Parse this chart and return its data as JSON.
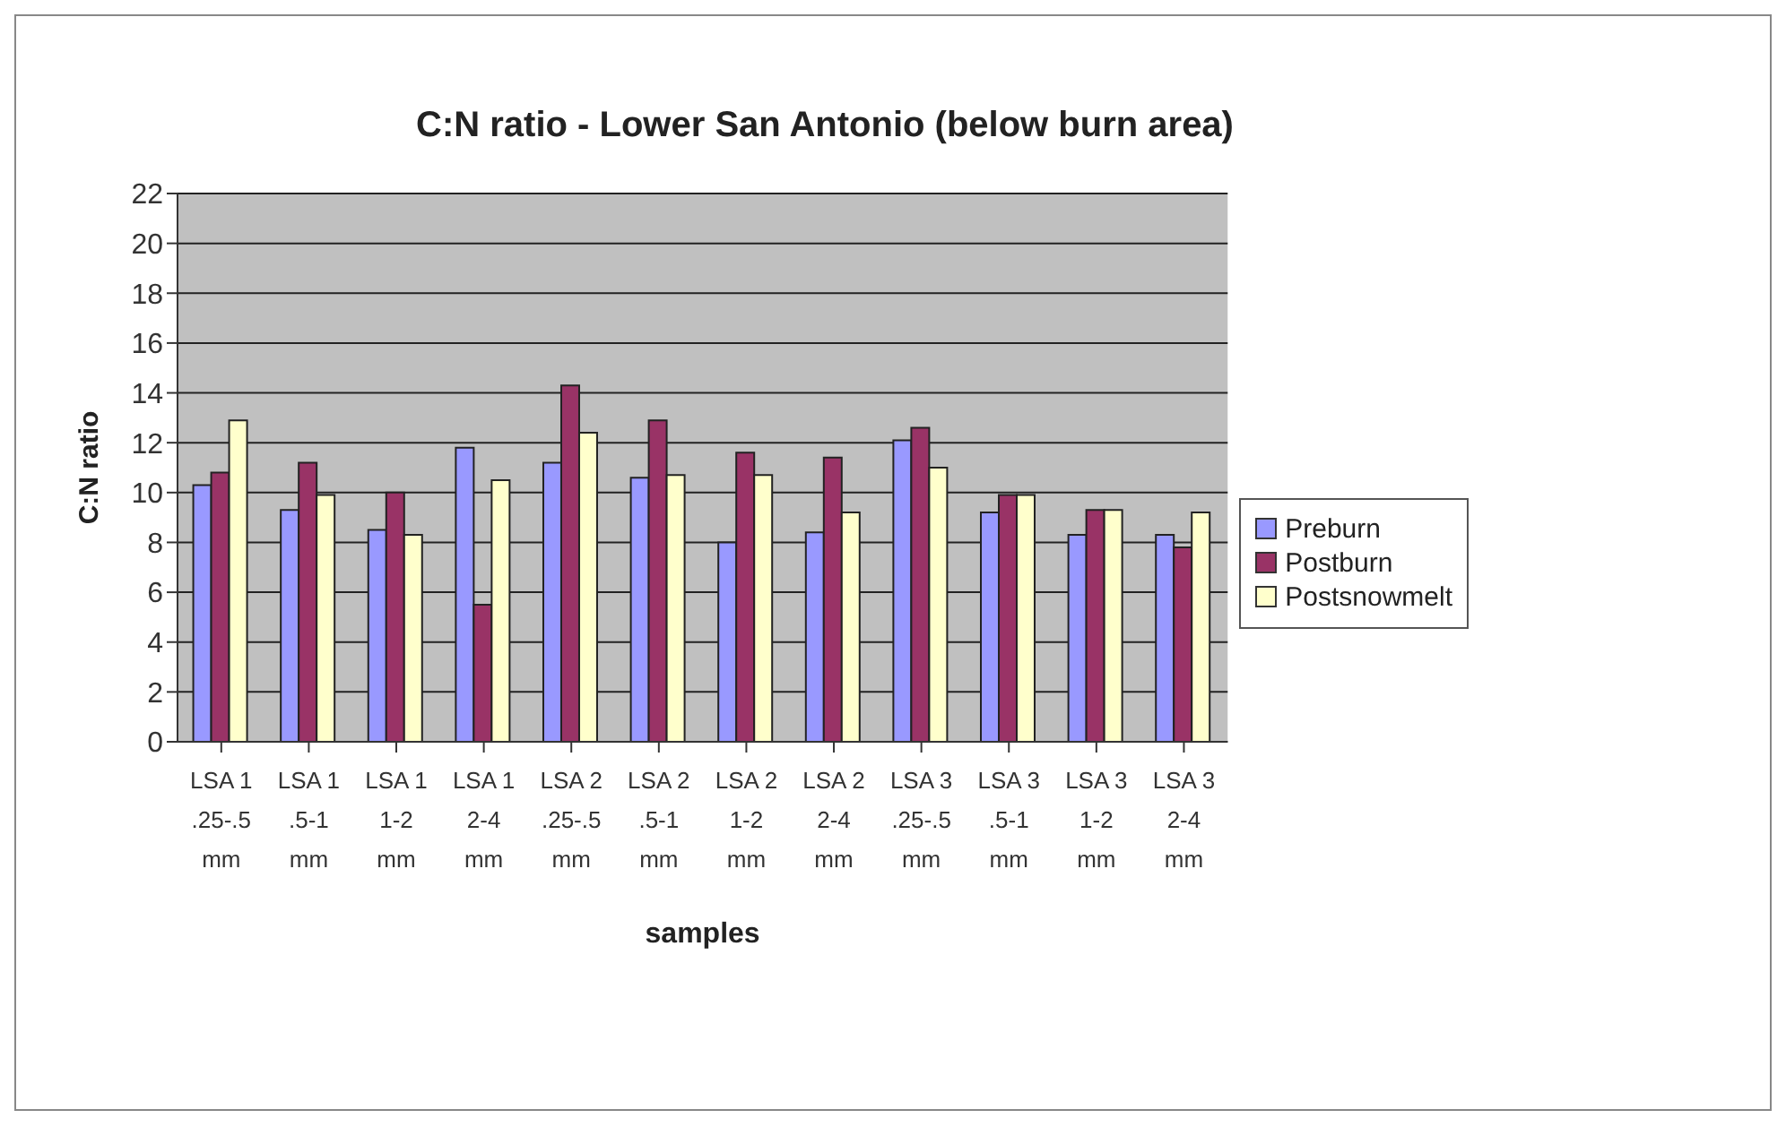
{
  "chart_data": {
    "type": "bar",
    "title": "C:N ratio - Lower San Antonio (below burn area)",
    "xlabel": "samples",
    "ylabel": "C:N ratio",
    "categories": [
      "LSA 1\n.25-.5\nmm",
      "LSA 1\n.5-1\nmm",
      "LSA 1\n1-2\nmm",
      "LSA 1\n2-4\nmm",
      "LSA 2\n.25-.5\nmm",
      "LSA 2\n.5-1\nmm",
      "LSA 2\n1-2\nmm",
      "LSA 2\n2-4\nmm",
      "LSA 3\n.25-.5\nmm",
      "LSA 3\n.5-1\nmm",
      "LSA 3\n1-2\nmm",
      "LSA 3\n2-4\nmm"
    ],
    "series": [
      {
        "name": "Preburn",
        "color": "#9999ff",
        "values": [
          10.3,
          9.3,
          8.5,
          11.8,
          11.2,
          10.6,
          8.0,
          8.4,
          12.1,
          9.2,
          8.3,
          8.3
        ]
      },
      {
        "name": "Postburn",
        "color": "#993366",
        "values": [
          10.8,
          11.2,
          10.0,
          5.5,
          14.3,
          12.9,
          11.6,
          11.4,
          12.6,
          9.9,
          9.3,
          7.8
        ]
      },
      {
        "name": "Postsnowmelt",
        "color": "#ffffcc",
        "values": [
          12.9,
          9.9,
          8.3,
          10.5,
          12.4,
          10.7,
          10.7,
          9.2,
          11.0,
          9.9,
          9.3,
          9.2
        ]
      }
    ],
    "ylim": [
      0,
      22
    ],
    "yticks": [
      0,
      2,
      4,
      6,
      8,
      10,
      12,
      14,
      16,
      18,
      20,
      22
    ],
    "grid": "y",
    "legend": "right"
  }
}
